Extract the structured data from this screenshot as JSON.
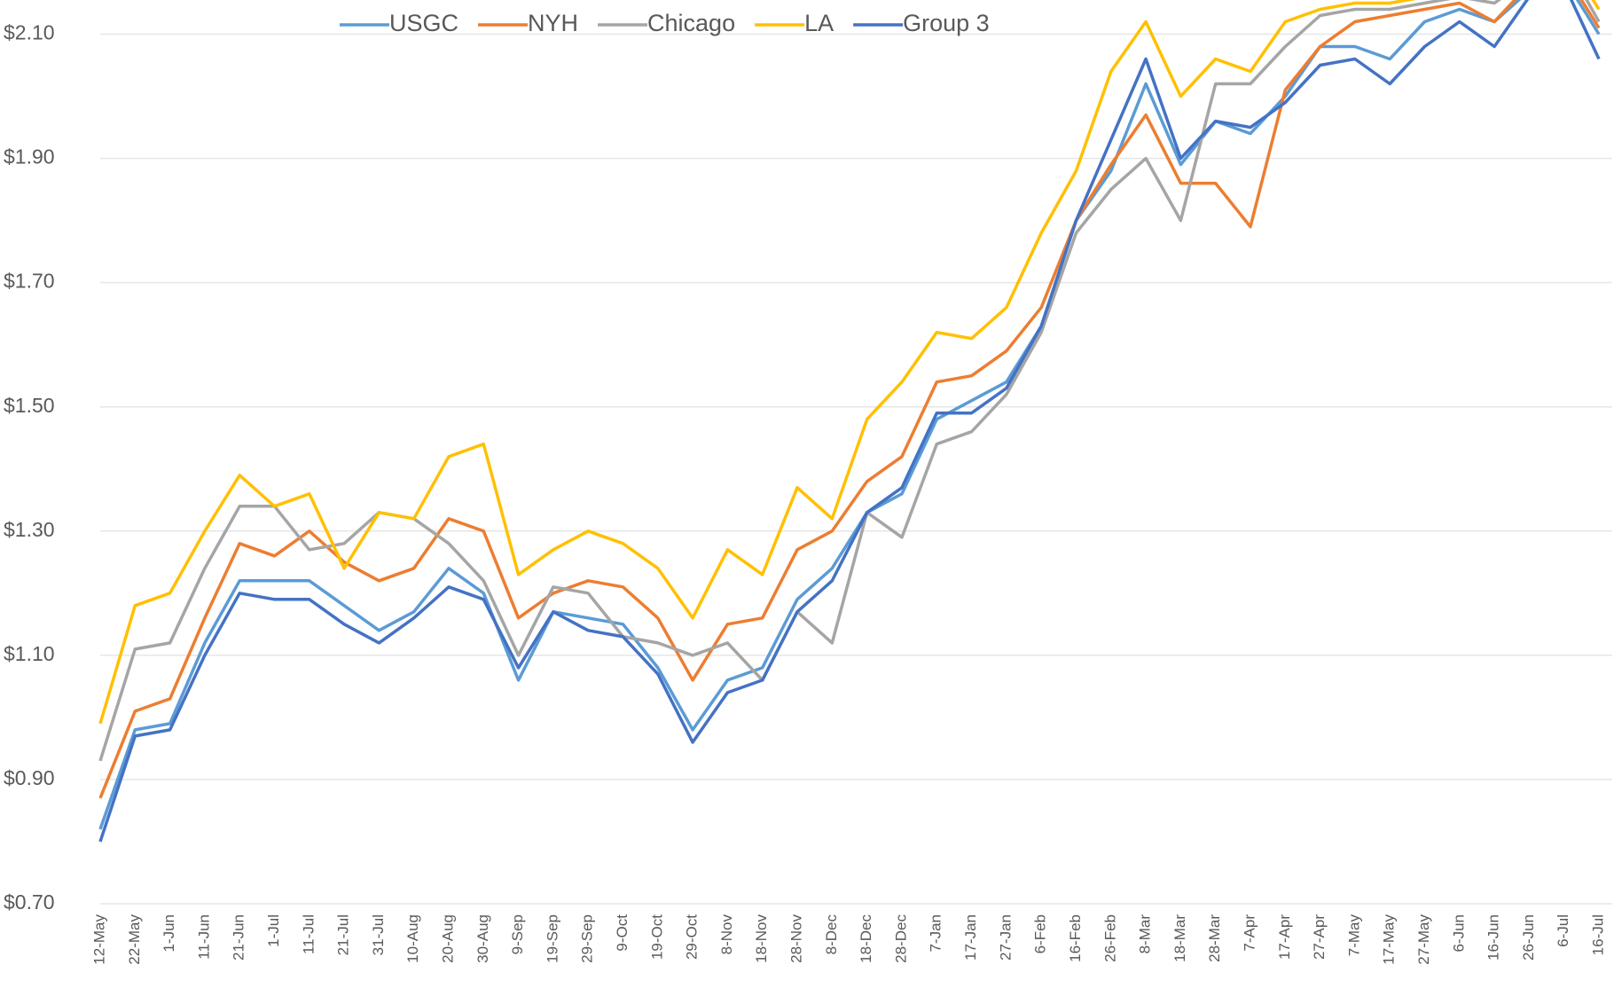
{
  "chart_data": {
    "type": "line",
    "categories": [
      "12-May",
      "22-May",
      "1-Jun",
      "11-Jun",
      "21-Jun",
      "1-Jul",
      "11-Jul",
      "21-Jul",
      "31-Jul",
      "10-Aug",
      "20-Aug",
      "30-Aug",
      "9-Sep",
      "19-Sep",
      "29-Sep",
      "9-Oct",
      "19-Oct",
      "29-Oct",
      "8-Nov",
      "18-Nov",
      "28-Nov",
      "8-Dec",
      "18-Dec",
      "28-Dec",
      "7-Jan",
      "17-Jan",
      "27-Jan",
      "6-Feb",
      "16-Feb",
      "26-Feb",
      "8-Mar",
      "18-Mar",
      "28-Mar",
      "7-Apr",
      "17-Apr",
      "27-Apr",
      "7-May",
      "17-May",
      "27-May",
      "6-Jun",
      "16-Jun",
      "26-Jun",
      "6-Jul",
      "16-Jul"
    ],
    "series": [
      {
        "name": "USGC",
        "color": "#5b9bd5",
        "values": [
          0.82,
          0.98,
          0.99,
          1.12,
          1.22,
          1.22,
          1.22,
          1.18,
          1.14,
          1.17,
          1.24,
          1.2,
          1.06,
          1.17,
          1.16,
          1.15,
          1.08,
          0.98,
          1.06,
          1.08,
          1.19,
          1.24,
          1.33,
          1.36,
          1.48,
          1.51,
          1.54,
          1.63,
          1.8,
          1.88,
          2.02,
          1.89,
          1.96,
          1.94,
          2.0,
          2.08,
          2.08,
          2.06,
          2.12,
          2.14,
          2.12,
          2.17,
          2.19,
          2.1
        ]
      },
      {
        "name": "NYH",
        "color": "#ed7d31",
        "values": [
          0.87,
          1.01,
          1.03,
          1.16,
          1.28,
          1.26,
          1.3,
          1.25,
          1.22,
          1.24,
          1.32,
          1.3,
          1.16,
          1.2,
          1.22,
          1.21,
          1.16,
          1.06,
          1.15,
          1.16,
          1.27,
          1.3,
          1.38,
          1.42,
          1.54,
          1.55,
          1.59,
          1.66,
          1.8,
          1.89,
          1.97,
          1.86,
          1.86,
          1.79,
          2.01,
          2.08,
          2.12,
          2.13,
          2.14,
          2.15,
          2.12,
          2.18,
          2.2,
          2.11
        ]
      },
      {
        "name": "Chicago",
        "color": "#a5a5a5",
        "values": [
          0.93,
          1.11,
          1.12,
          1.24,
          1.34,
          1.34,
          1.27,
          1.28,
          1.33,
          1.32,
          1.28,
          1.22,
          1.1,
          1.21,
          1.2,
          1.13,
          1.12,
          1.1,
          1.12,
          1.06,
          1.17,
          1.12,
          1.33,
          1.29,
          1.44,
          1.46,
          1.52,
          1.62,
          1.78,
          1.85,
          1.9,
          1.8,
          2.02,
          2.02,
          2.08,
          2.13,
          2.14,
          2.14,
          2.15,
          2.16,
          2.15,
          2.19,
          2.22,
          2.12
        ]
      },
      {
        "name": "LA",
        "color": "#ffc000",
        "values": [
          0.99,
          1.18,
          1.2,
          1.3,
          1.39,
          1.34,
          1.36,
          1.24,
          1.33,
          1.32,
          1.42,
          1.44,
          1.23,
          1.27,
          1.3,
          1.28,
          1.24,
          1.16,
          1.27,
          1.23,
          1.37,
          1.32,
          1.48,
          1.54,
          1.62,
          1.61,
          1.66,
          1.78,
          1.88,
          2.04,
          2.12,
          2.0,
          2.06,
          2.04,
          2.12,
          2.14,
          2.15,
          2.15,
          2.16,
          2.17,
          2.16,
          2.2,
          2.23,
          2.14
        ]
      },
      {
        "name": "Group 3",
        "color": "#4472c4",
        "values": [
          0.8,
          0.97,
          0.98,
          1.1,
          1.2,
          1.19,
          1.19,
          1.15,
          1.12,
          1.16,
          1.21,
          1.19,
          1.08,
          1.17,
          1.14,
          1.13,
          1.07,
          0.96,
          1.04,
          1.06,
          1.17,
          1.22,
          1.33,
          1.37,
          1.49,
          1.49,
          1.53,
          1.63,
          1.8,
          1.93,
          2.06,
          1.9,
          1.96,
          1.95,
          1.99,
          2.05,
          2.06,
          2.02,
          2.08,
          2.12,
          2.08,
          2.16,
          2.18,
          2.06
        ]
      }
    ],
    "ylim": [
      0.7,
      2.155
    ],
    "yticks": [
      {
        "value": 0.7,
        "label": "$0.70"
      },
      {
        "value": 0.9,
        "label": "$0.90"
      },
      {
        "value": 1.1,
        "label": "$1.10"
      },
      {
        "value": 1.3,
        "label": "$1.30"
      },
      {
        "value": 1.5,
        "label": "$1.50"
      },
      {
        "value": 1.7,
        "label": "$1.70"
      },
      {
        "value": 1.9,
        "label": "$1.90"
      },
      {
        "value": 2.1,
        "label": "$2.10"
      }
    ],
    "grid": true
  }
}
